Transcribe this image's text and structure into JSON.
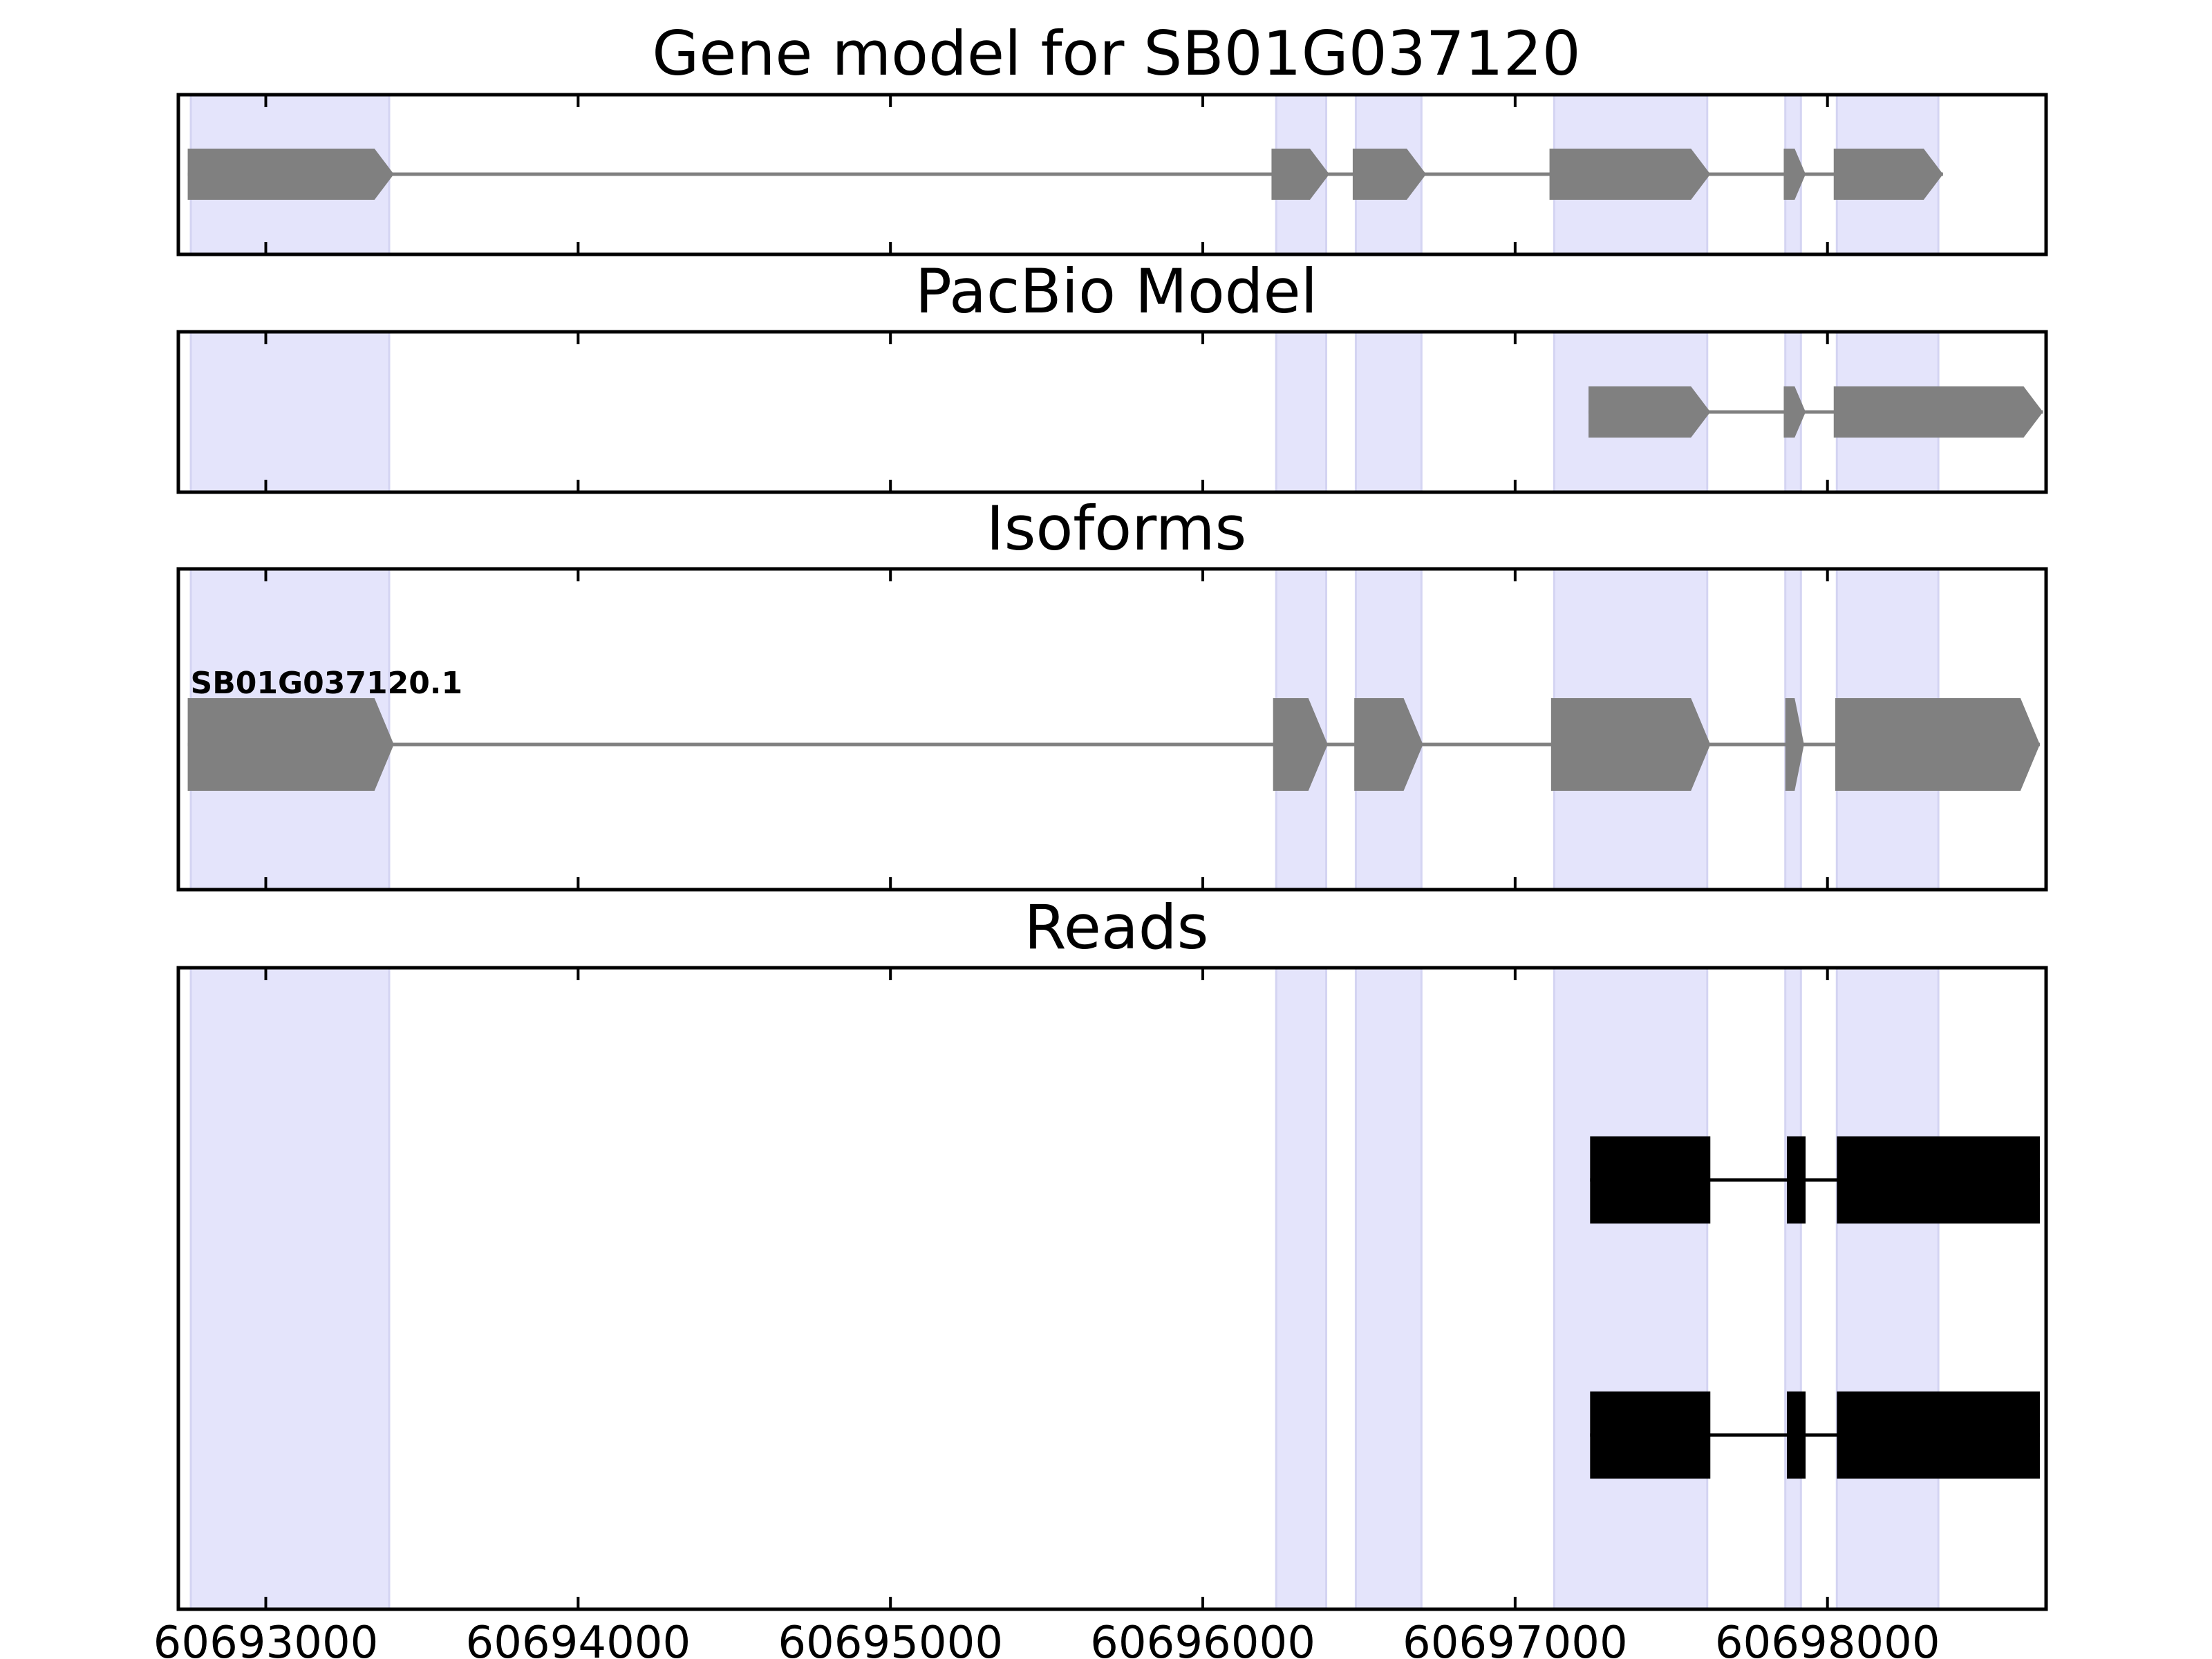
{
  "chart_data": {
    "type": "gene-track",
    "gene_id": "SB01G037120",
    "x_ticks": [
      60693000,
      60694000,
      60695000,
      60696000,
      60697000,
      60698000
    ],
    "x_tick_labels": [
      "60693000",
      "60694000",
      "60695000",
      "60696000",
      "60697000",
      "60698000"
    ],
    "xlim": [
      60692720,
      60698700
    ],
    "highlight_color": "#e4e4fb",
    "feature_color": "#808080",
    "read_color": "#000000",
    "highlight_regions": [
      [
        60692760,
        60693395
      ],
      [
        60696235,
        60696395
      ],
      [
        60696490,
        60696700
      ],
      [
        60697125,
        60697615
      ],
      [
        60697865,
        60697915
      ],
      [
        60698030,
        60698355
      ]
    ],
    "panels": [
      {
        "id": "gene-model",
        "title": "Gene model for SB01G037120",
        "tracks": [
          {
            "kind": "model",
            "exons": [
              [
                60692750,
                60693410
              ],
              [
                60696220,
                60696405
              ],
              [
                60696480,
                60696715
              ],
              [
                60697110,
                60697625
              ],
              [
                60697860,
                60697930
              ],
              [
                60698020,
                60698370
              ]
            ]
          }
        ]
      },
      {
        "id": "pacbio-model",
        "title": "PacBio Model",
        "tracks": [
          {
            "kind": "model",
            "exons": [
              [
                60697235,
                60697625
              ],
              [
                60697860,
                60697930
              ],
              [
                60698020,
                60698690
              ]
            ]
          }
        ]
      },
      {
        "id": "isoforms",
        "title": "Isoforms",
        "tracks": [
          {
            "kind": "model",
            "label": "SB01G037120.1",
            "exons": [
              [
                60692750,
                60693410
              ],
              [
                60696225,
                60696400
              ],
              [
                60696485,
                60696705
              ],
              [
                60697115,
                60697625
              ],
              [
                60697865,
                60697925
              ],
              [
                60698025,
                60698680
              ]
            ]
          }
        ]
      },
      {
        "id": "reads",
        "title": "Reads",
        "tracks": [
          {
            "kind": "read",
            "exons": [
              [
                60697240,
                60697625
              ],
              [
                60697870,
                60697930
              ],
              [
                60698030,
                60698680
              ]
            ]
          },
          {
            "kind": "read",
            "exons": [
              [
                60697240,
                60697625
              ],
              [
                60697870,
                60697930
              ],
              [
                60698030,
                60698680
              ]
            ]
          }
        ]
      }
    ]
  }
}
